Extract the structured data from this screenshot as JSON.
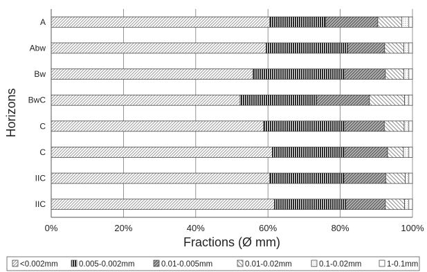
{
  "chart_data": {
    "type": "bar",
    "orientation": "horizontal",
    "stacked": "percent",
    "categories": [
      "A",
      "Abw",
      "Bw",
      "BwC",
      "C",
      "C",
      "IIC",
      "IIC"
    ],
    "series": [
      {
        "name": "<0.002mm",
        "values": [
          60.5,
          59.5,
          55.8,
          52.3,
          58.8,
          61.2,
          60.5,
          61.8
        ]
      },
      {
        "name": "0.005-0.002mm",
        "values": [
          15.5,
          22.5,
          25.4,
          21.1,
          22.4,
          20.0,
          20.5,
          19.7
        ]
      },
      {
        "name": "0.01-0.005mm",
        "values": [
          14.4,
          10.3,
          11.3,
          14.7,
          11.0,
          11.9,
          11.6,
          11.0
        ]
      },
      {
        "name": "0.01-0.02mm",
        "values": [
          6.6,
          5.3,
          5.1,
          9.7,
          5.5,
          4.4,
          5.4,
          5.3
        ]
      },
      {
        "name": "0.1-0.02mm",
        "values": [
          2.0,
          1.4,
          1.4,
          1.2,
          1.3,
          1.5,
          1.0,
          1.2
        ]
      },
      {
        "name": "1-0.1mm",
        "values": [
          1.0,
          1.0,
          1.0,
          1.0,
          1.0,
          1.0,
          1.0,
          1.0
        ]
      }
    ],
    "xlabel": "Fractions (Ø mm)",
    "ylabel": "Horizons",
    "xlim": [
      0,
      100
    ],
    "xticks": [
      "0%",
      "20%",
      "40%",
      "60%",
      "80%",
      "100%"
    ],
    "grid": "vertical",
    "legend": "bottom"
  }
}
